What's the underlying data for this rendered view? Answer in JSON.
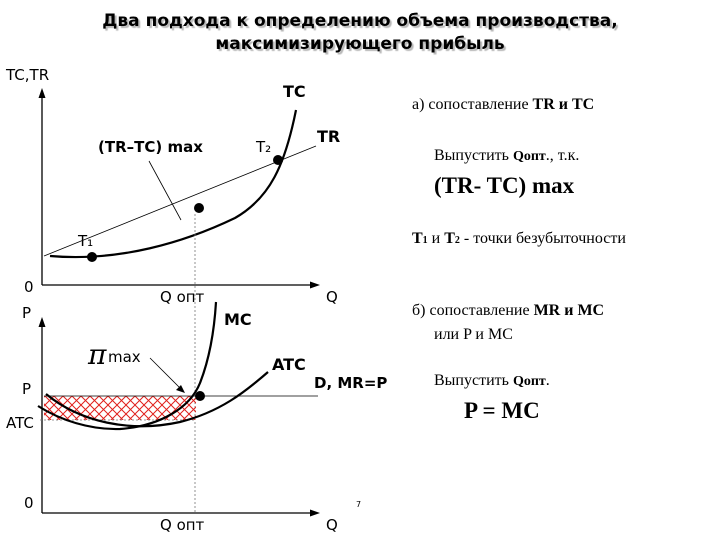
{
  "title": {
    "line1": "Два подхода к определению объема производства,",
    "line2": "максимизирующего прибыль"
  },
  "graph_top": {
    "y_axis_label": "TC,TR",
    "x_axis_label": "Q",
    "origin_label": "0",
    "q_opt_label": "Q опт",
    "tc_label": "TC",
    "tr_label": "TR",
    "max_label": "(TR–TC) max",
    "t1_label": "T₁",
    "t2_label": "T₂"
  },
  "graph_bottom": {
    "y_axis_label": "P",
    "x_axis_label": "Q",
    "origin_label": "0",
    "q_opt_label": "Q опт",
    "p_label": "P",
    "atc_tick_label": "ATC",
    "mc_label": "MC",
    "atc_label": "ATC",
    "d_label": "D, MR=P",
    "pi_symbol": "π",
    "pi_max_label": "max"
  },
  "text": {
    "a_prefix": "а) сопоставление ",
    "a_bold": "TR и TC",
    "release1_prefix": "Выпустить ",
    "release1_bold": "Qопт",
    "release1_suffix": "., т.к.",
    "formula1": "(TR- TC) max",
    "t_points_t1": "T",
    "t_points_sub1": "1",
    "t_points_mid": " и ",
    "t_points_t2": "T",
    "t_points_sub2": "2",
    "t_points_suffix": " - точки безубыточности",
    "b_prefix": "б) сопоставление ",
    "b_bold": "MR и MC",
    "b_line2": "или P и MC",
    "release2_prefix": "Выпустить ",
    "release2_bold": "Qопт",
    "release2_suffix": ".",
    "formula2": "P = MC"
  },
  "page_number": "7",
  "colors": {
    "hatch": "#e0201c",
    "line": "#000000",
    "shadow": "#b8b8b8"
  }
}
